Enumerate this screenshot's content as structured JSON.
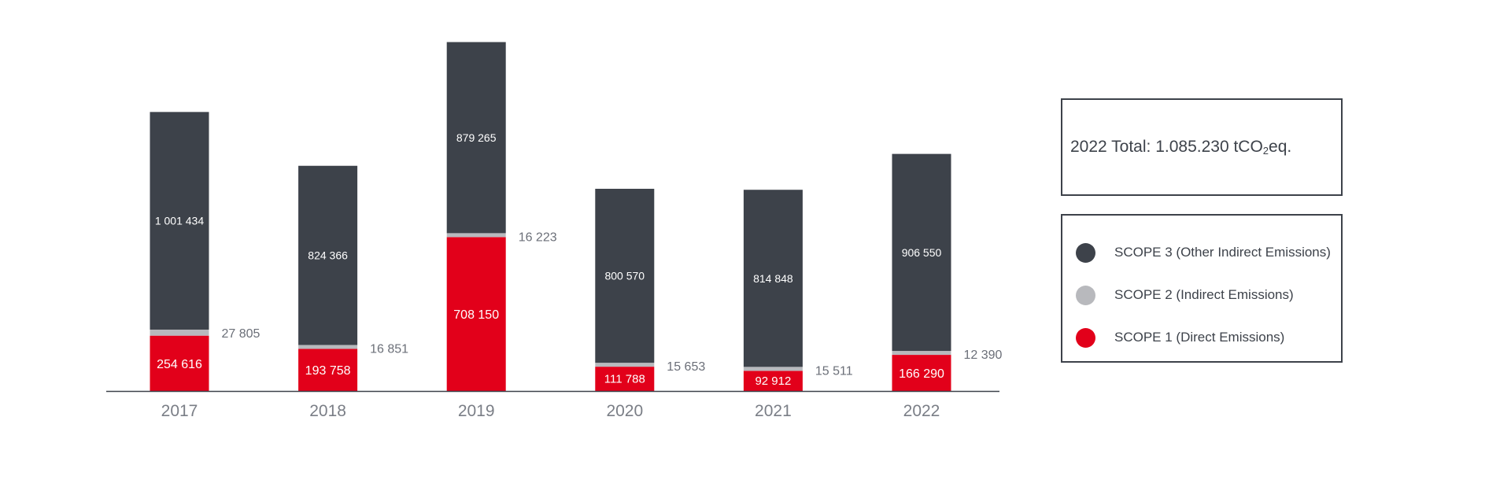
{
  "chart_data": {
    "type": "bar",
    "stacked": true,
    "categories": [
      "2017",
      "2018",
      "2019",
      "2020",
      "2021",
      "2022"
    ],
    "series": [
      {
        "name": "SCOPE 1 (Direct Emissions)",
        "color": "#e2001a",
        "values": [
          254616,
          193758,
          708150,
          111788,
          92912,
          166290
        ],
        "labels": [
          "254 616",
          "193 758",
          "708 150",
          "111 788",
          "92 912",
          "166 290"
        ]
      },
      {
        "name": "SCOPE 2 (Indirect Emissions)",
        "color": "#b8b9bd",
        "values": [
          27805,
          16851,
          16223,
          15653,
          15511,
          12390
        ],
        "labels": [
          "27 805",
          "16 851",
          "16 223",
          "15 653",
          "15 511",
          "12 390"
        ]
      },
      {
        "name": "SCOPE 3 (Other Indirect Emissions)",
        "color": "#3d424a",
        "values": [
          1001434,
          824366,
          879265,
          800570,
          814848,
          906550
        ],
        "labels": [
          "1 001 434",
          "824 366",
          "879 265",
          "800 570",
          "814 848",
          "906 550"
        ]
      }
    ],
    "ylim": [
      0,
      1603638
    ],
    "grid": false,
    "legend_position": "right"
  },
  "total": {
    "prefix": "2022 Total: 1.085.230 tCO",
    "subscript": "2",
    "suffix": "eq."
  },
  "legend": [
    {
      "label": "SCOPE 3 (Other Indirect Emissions)",
      "color": "#3d424a"
    },
    {
      "label": "SCOPE 2 (Indirect Emissions)",
      "color": "#b8b9bd"
    },
    {
      "label": "SCOPE 1 (Direct Emissions)",
      "color": "#e2001a"
    }
  ]
}
